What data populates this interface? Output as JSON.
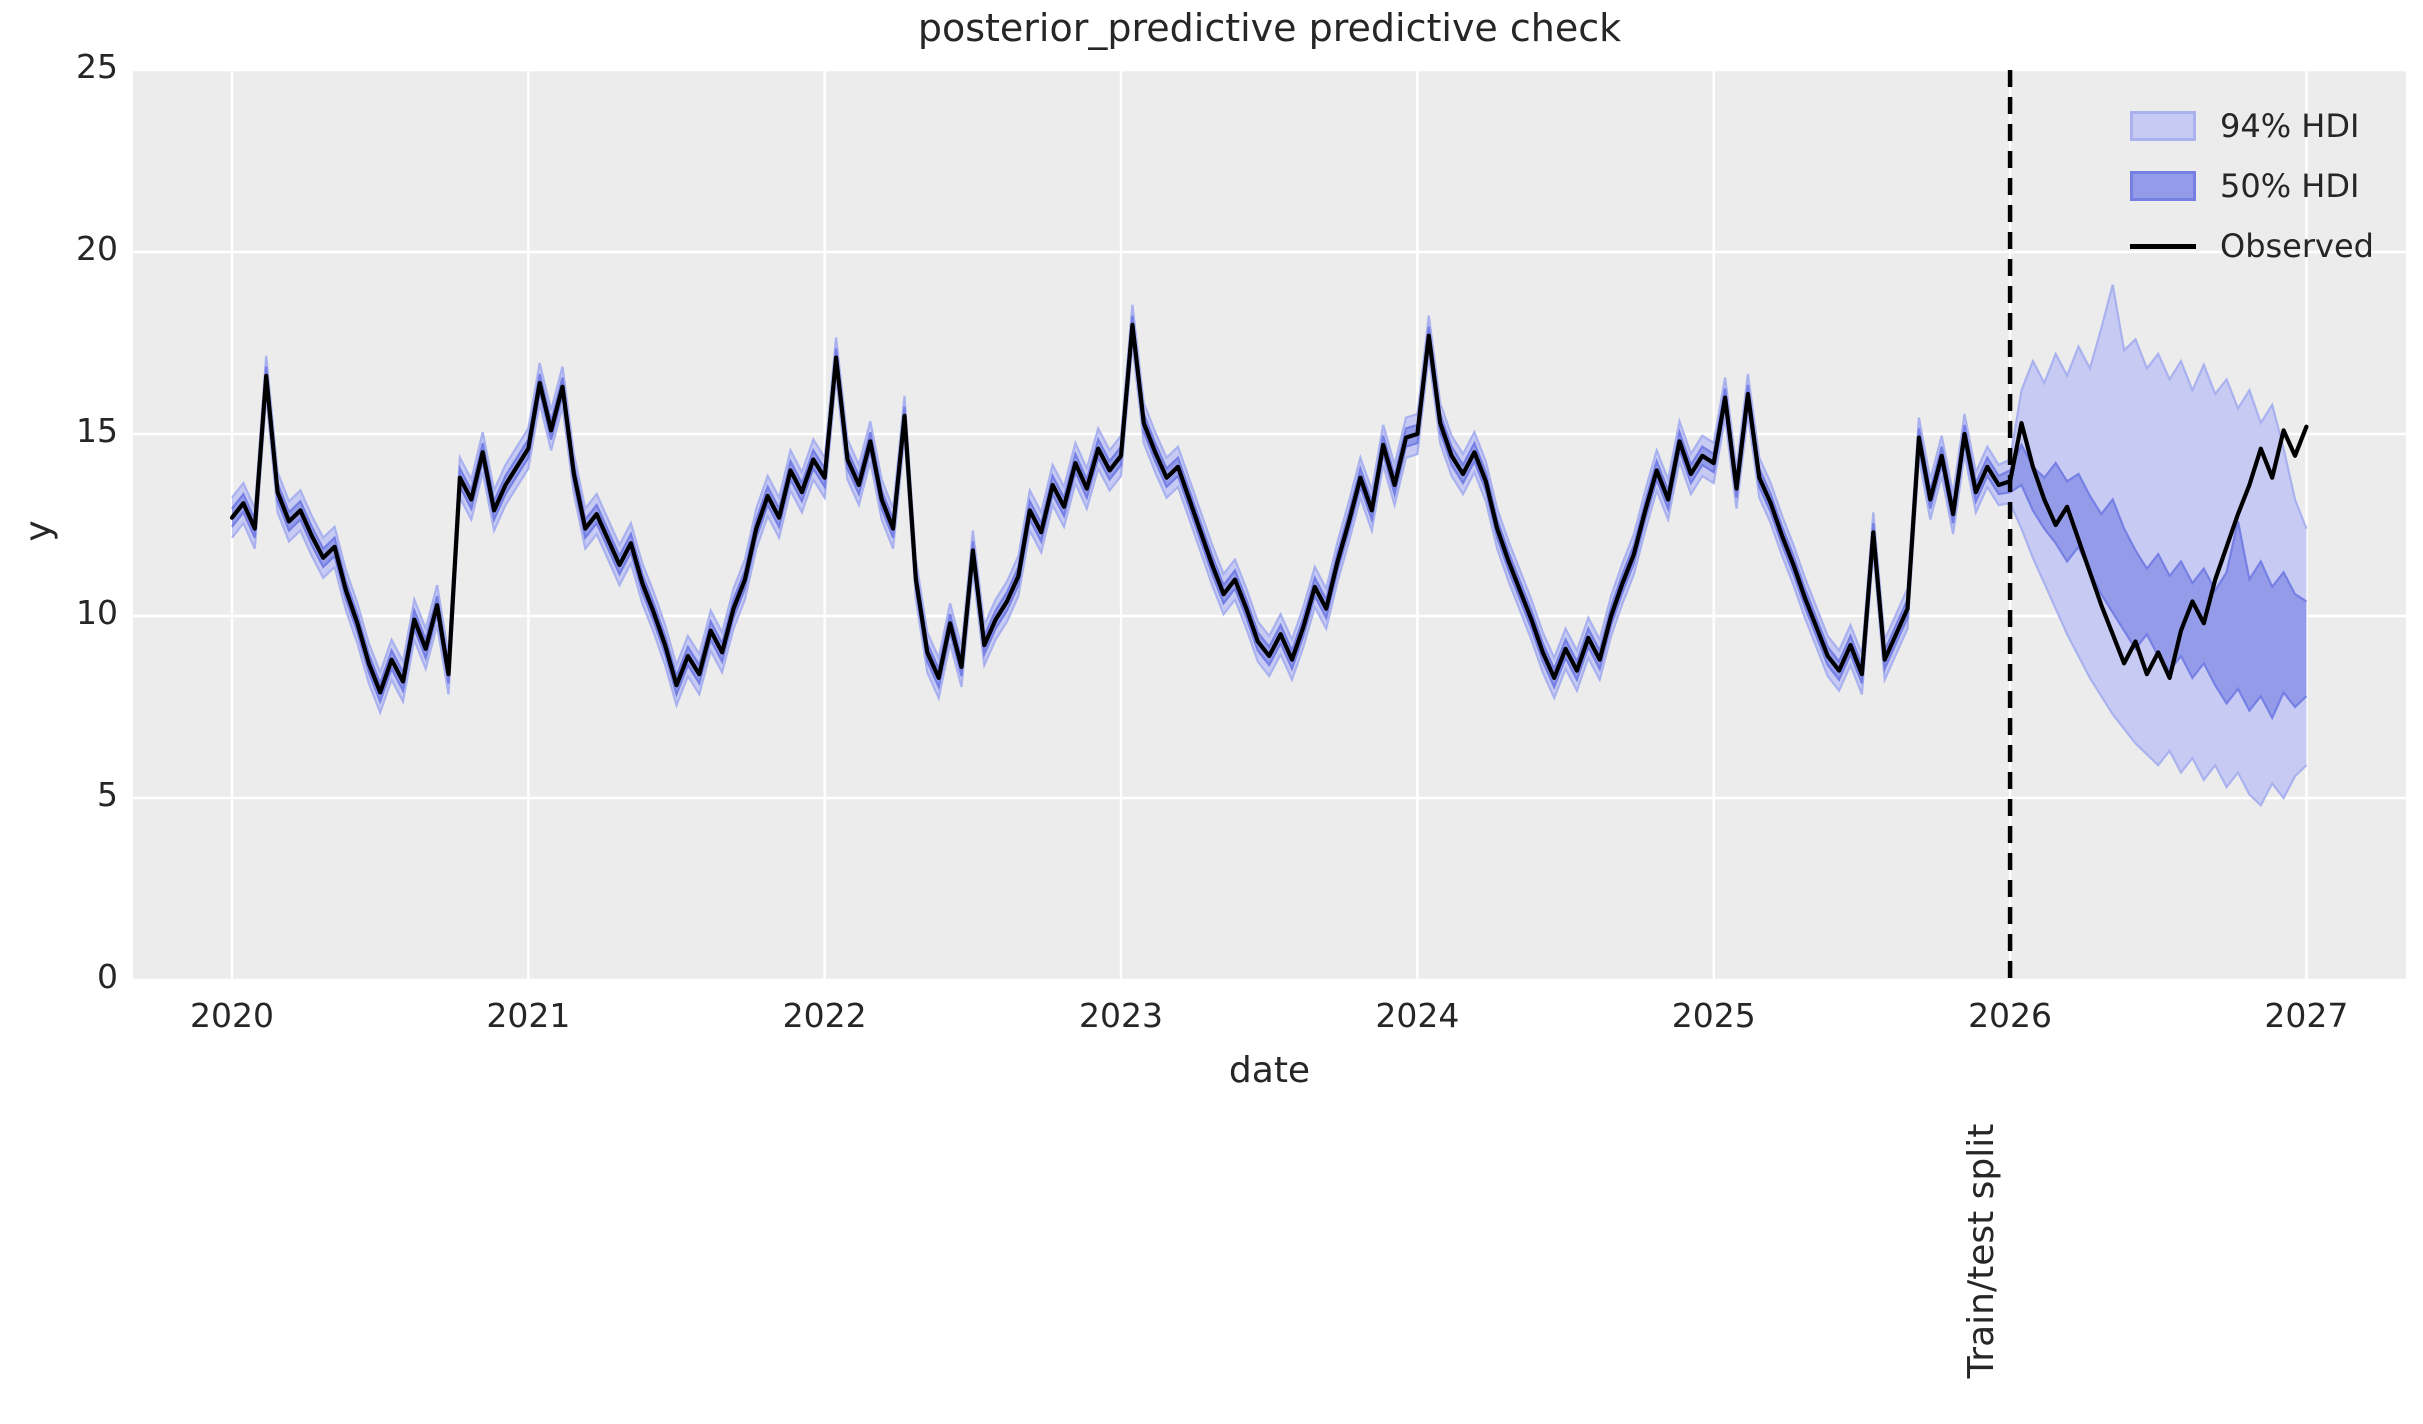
{
  "figure": {
    "title": "posterior_predictive predictive check",
    "xlabel": "date",
    "ylabel": "y",
    "split_label": "Train/test split"
  },
  "legend": {
    "items": [
      {
        "label": "94% HDI",
        "type": "patch",
        "fill": "#c7cbf3",
        "edge": "#a9b1ef"
      },
      {
        "label": "50% HDI",
        "type": "patch",
        "fill": "#949ce9",
        "edge": "#7680e4"
      },
      {
        "label": "Observed",
        "type": "line",
        "color": "#000000"
      }
    ]
  },
  "chart_data": {
    "type": "line",
    "title": "posterior_predictive predictive check",
    "xlabel": "date",
    "ylabel": "y",
    "xlim": [
      2019.666,
      2027.336
    ],
    "ylim": [
      0,
      25
    ],
    "x_ticks": [
      2020,
      2021,
      2022,
      2023,
      2024,
      2025,
      2026,
      2027
    ],
    "y_ticks": [
      0,
      5,
      10,
      15,
      20,
      25
    ],
    "grid": true,
    "legend_position": "upper right",
    "background": "#ececec",
    "gridline_color": "#ffffff",
    "x_start": 2020.0,
    "x_step_years": 0.0384615,
    "split_x": 2026.0,
    "train_points": 157,
    "train_hdi94_halfwidth": 0.55,
    "train_hdi50_halfwidth": 0.25,
    "observed": [
      12.7,
      13.1,
      12.4,
      16.6,
      13.4,
      12.6,
      12.9,
      12.2,
      11.6,
      11.9,
      10.7,
      9.8,
      8.7,
      7.9,
      8.8,
      8.2,
      9.9,
      9.1,
      10.3,
      8.4,
      13.8,
      13.2,
      14.5,
      12.9,
      13.6,
      14.1,
      14.6,
      16.4,
      15.1,
      16.3,
      13.9,
      12.4,
      12.8,
      12.1,
      11.4,
      12.0,
      10.9,
      10.1,
      9.2,
      8.1,
      8.9,
      8.4,
      9.6,
      9.0,
      10.2,
      11.0,
      12.4,
      13.3,
      12.7,
      14.0,
      13.4,
      14.3,
      13.8,
      17.1,
      14.3,
      13.6,
      14.8,
      13.2,
      12.4,
      15.5,
      11.0,
      9.0,
      8.3,
      9.8,
      8.6,
      11.8,
      9.2,
      9.9,
      10.4,
      11.1,
      12.9,
      12.3,
      13.6,
      13.0,
      14.2,
      13.5,
      14.6,
      14.0,
      14.4,
      18.0,
      15.3,
      14.5,
      13.8,
      14.1,
      13.2,
      12.3,
      11.4,
      10.6,
      11.0,
      10.2,
      9.3,
      8.9,
      9.5,
      8.8,
      9.7,
      10.8,
      10.2,
      11.5,
      12.6,
      13.8,
      12.9,
      14.7,
      13.6,
      14.9,
      15.0,
      17.7,
      15.3,
      14.4,
      13.9,
      14.5,
      13.7,
      12.4,
      11.5,
      10.7,
      9.9,
      9.0,
      8.3,
      9.1,
      8.5,
      9.4,
      8.8,
      10.0,
      10.9,
      11.7,
      12.9,
      14.0,
      13.2,
      14.8,
      13.9,
      14.4,
      14.2,
      16.0,
      13.5,
      16.1,
      13.8,
      13.1,
      12.2,
      11.4,
      10.5,
      9.7,
      8.9,
      8.5,
      9.2,
      8.4,
      12.3,
      8.8,
      9.5,
      10.2,
      14.9,
      13.2,
      14.4,
      12.8,
      15.0,
      13.4,
      14.1,
      13.6,
      13.7,
      15.3,
      14.1,
      13.2,
      12.5,
      13.0,
      12.1,
      11.2,
      10.3,
      9.5,
      8.7,
      9.3,
      8.4,
      9.0,
      8.3,
      9.6,
      10.4,
      9.8,
      11.0,
      11.9,
      12.8,
      13.6,
      14.6,
      13.8,
      15.1,
      14.4,
      15.2
    ],
    "test_hdi94_upper": [
      14.3,
      16.2,
      17.0,
      16.4,
      17.2,
      16.6,
      17.4,
      16.8,
      17.9,
      19.1,
      17.3,
      17.6,
      16.8,
      17.2,
      16.5,
      17.0,
      16.2,
      16.9,
      16.1,
      16.5,
      15.7,
      16.2,
      15.3,
      15.8,
      14.6,
      13.2,
      12.4
    ],
    "test_hdi94_lower": [
      13.1,
      12.4,
      11.6,
      10.9,
      10.2,
      9.5,
      8.9,
      8.3,
      7.8,
      7.3,
      6.9,
      6.5,
      6.2,
      5.9,
      6.3,
      5.7,
      6.1,
      5.5,
      5.9,
      5.3,
      5.7,
      5.1,
      4.8,
      5.4,
      5.0,
      5.6,
      5.9
    ],
    "test_hdi50_upper": [
      14.0,
      14.7,
      14.1,
      13.8,
      14.2,
      13.7,
      13.9,
      13.3,
      12.8,
      13.2,
      12.4,
      11.8,
      11.3,
      11.7,
      11.1,
      11.5,
      10.9,
      11.3,
      10.7,
      11.2,
      12.6,
      11.0,
      11.5,
      10.8,
      11.2,
      10.6,
      10.4
    ],
    "test_hdi50_lower": [
      13.4,
      13.6,
      12.9,
      12.4,
      12.0,
      11.5,
      11.9,
      11.2,
      10.6,
      10.1,
      9.6,
      9.1,
      9.5,
      8.9,
      8.5,
      8.9,
      8.3,
      8.7,
      8.1,
      7.6,
      8.0,
      7.4,
      7.8,
      7.2,
      7.9,
      7.5,
      7.8
    ],
    "colors": {
      "hdi94_fill": "#c7cbf3",
      "hdi94_edge": "#a9b1ef",
      "hdi50_fill": "#949ce9",
      "hdi50_edge": "#7680e4",
      "observed": "#000000",
      "split_line": "#000000"
    }
  }
}
